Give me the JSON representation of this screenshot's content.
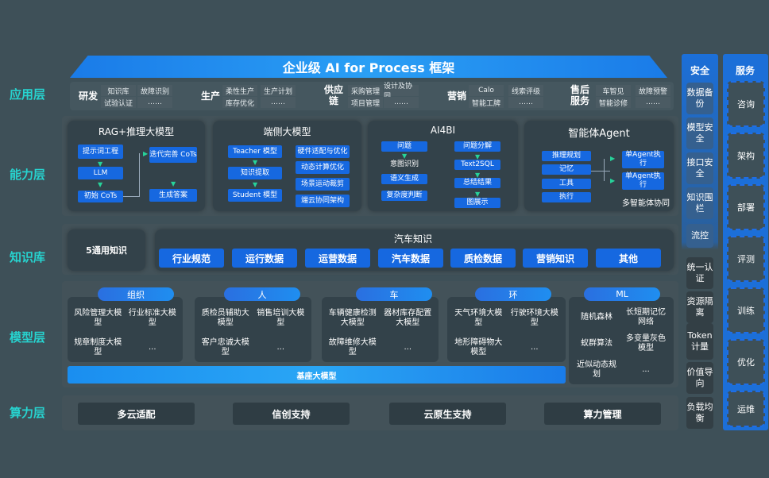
{
  "title": "企业级 AI for Process 框架",
  "layers": {
    "app": "应用层",
    "capability": "能力层",
    "knowledge": "知识库",
    "model": "模型层",
    "compute": "算力层"
  },
  "app_groups": [
    {
      "name": "研发",
      "cols": [
        [
          "知识库",
          "试验认证"
        ],
        [
          "故障识别",
          "……"
        ]
      ]
    },
    {
      "name": "生产",
      "cols": [
        [
          "柔性生产",
          "库存优化"
        ],
        [
          "生产计划",
          "……"
        ]
      ]
    },
    {
      "name": "供应链",
      "cols": [
        [
          "采购管理",
          "项目管理"
        ],
        [
          "设计及协同",
          "……"
        ]
      ]
    },
    {
      "name": "营销",
      "cols": [
        [
          "Calo",
          "智能工牌"
        ],
        [
          "线索评级",
          "……"
        ]
      ]
    },
    {
      "name": "售后服务",
      "cols": [
        [
          "车智见",
          "智能诊修"
        ],
        [
          "故障预警",
          "……"
        ]
      ]
    }
  ],
  "capability": [
    {
      "title": "RAG+推理大模型",
      "boxes": [
        "提示词工程",
        "LLM",
        "初始 CoTs",
        "迭代完善 CoTs",
        "生成答案"
      ]
    },
    {
      "title": "端侧大模型",
      "boxes": [
        "Teacher 模型",
        "知识提取",
        "Student 模型",
        "硬件适配与优化",
        "动态计算优化",
        "场景运动裁剪",
        "端云协同架构"
      ]
    },
    {
      "title": "AI4BI",
      "boxes": [
        "问题",
        "意图识别",
        "语义生成",
        "复杂度判断",
        "问题分解",
        "Text2SQL",
        "总结结果",
        "图展示"
      ]
    },
    {
      "title": "智能体Agent",
      "boxes": [
        "推理规划",
        "记忆",
        "工具",
        "执行",
        "单Agent执行",
        "单Agent执行",
        "多智能体协同"
      ]
    }
  ],
  "knowledge": {
    "general": "5通用知识",
    "auto_title": "汽车知识",
    "items": [
      "行业规范",
      "运行数据",
      "运营数据",
      "汽车数据",
      "质检数据",
      "营销知识",
      "其他"
    ]
  },
  "model": {
    "groups": [
      {
        "name": "组织",
        "items": [
          "风险管理大模型",
          "行业标准大模型",
          "规章制度大模型",
          "..."
        ]
      },
      {
        "name": "人",
        "items": [
          "质检员辅助大模型",
          "销售培训大模型",
          "客户忠诚大模型",
          "..."
        ]
      },
      {
        "name": "车",
        "items": [
          "车辆健康检测大模型",
          "器材库存配置大模型",
          "故障维修大模型",
          "..."
        ]
      },
      {
        "name": "环",
        "items": [
          "天气环境大模型",
          "行驶环境大模型",
          "地形障碍物大模型",
          "..."
        ]
      },
      {
        "name": "ML",
        "items": [
          "随机森林",
          "长短期记忆网络",
          "蚁群算法",
          "多变量灰色模型",
          "近似动态规划",
          "..."
        ]
      }
    ],
    "base": "基座大模型"
  },
  "compute": [
    "多云适配",
    "信创支持",
    "云原生支持",
    "算力管理"
  ],
  "security": {
    "title": "安全",
    "items": [
      "数据备份",
      "模型安全",
      "接口安全",
      "知识围栏",
      "流控",
      "统一认证",
      "资源隔离",
      "Token计量",
      "价值导向",
      "负载均衡"
    ]
  },
  "service": {
    "title": "服务",
    "items": [
      "咨询",
      "架构",
      "部署",
      "评测",
      "训练",
      "优化",
      "运维"
    ]
  },
  "colors": {
    "background": "#3e5058",
    "accent": "#1668e0",
    "layer_label": "#27d3cf"
  }
}
